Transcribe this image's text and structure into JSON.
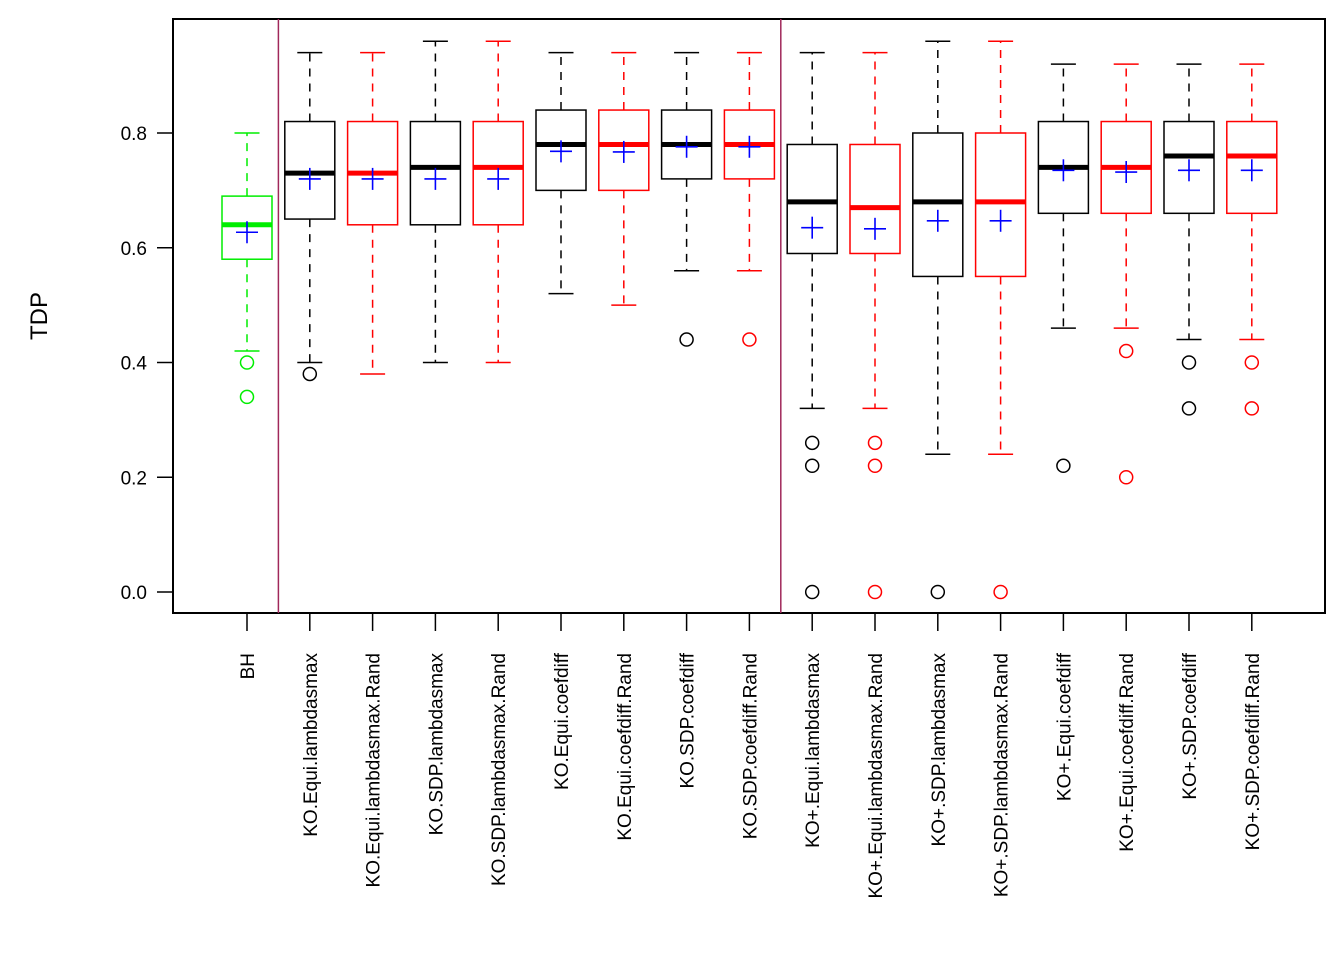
{
  "chart_data": {
    "type": "boxplot",
    "title": "",
    "xlabel": "",
    "ylabel": "TDP",
    "ylim": [
      0,
      0.96
    ],
    "yticks": [
      0.0,
      0.2,
      0.4,
      0.6,
      0.8
    ],
    "ytick_labels": [
      "0.0",
      "0.2",
      "0.4",
      "0.6",
      "0.8"
    ],
    "grid": false,
    "legend": "none",
    "mean_marker": {
      "shape": "plus",
      "color": "#0000ff"
    },
    "group_separators_after_index": [
      0,
      8
    ],
    "separator_color": "#a0285a",
    "categories": [
      "BH",
      "KO.Equi.lambdasmax",
      "KO.Equi.lambdasmax.Rand",
      "KO.SDP.lambdasmax",
      "KO.SDP.lambdasmax.Rand",
      "KO.Equi.coefdiff",
      "KO.Equi.coefdiff.Rand",
      "KO.SDP.coefdiff",
      "KO.SDP.coefdiff.Rand",
      "KO+.Equi.lambdasmax",
      "KO+.Equi.lambdasmax.Rand",
      "KO+.SDP.lambdasmax",
      "KO+.SDP.lambdasmax.Rand",
      "KO+.Equi.coefdiff",
      "KO+.Equi.coefdiff.Rand",
      "KO+.SDP.coefdiff",
      "KO+.SDP.coefdiff.Rand"
    ],
    "boxes": [
      {
        "color": "#00ee00",
        "whisker_low": 0.42,
        "q1": 0.58,
        "median": 0.64,
        "q3": 0.69,
        "whisker_high": 0.8,
        "mean": 0.627,
        "outliers": [
          0.4,
          0.34
        ]
      },
      {
        "color": "#000000",
        "whisker_low": 0.4,
        "q1": 0.65,
        "median": 0.73,
        "q3": 0.82,
        "whisker_high": 0.94,
        "mean": 0.72,
        "outliers": [
          0.38
        ]
      },
      {
        "color": "#ff0000",
        "whisker_low": 0.38,
        "q1": 0.64,
        "median": 0.73,
        "q3": 0.82,
        "whisker_high": 0.94,
        "mean": 0.72,
        "outliers": []
      },
      {
        "color": "#000000",
        "whisker_low": 0.4,
        "q1": 0.64,
        "median": 0.74,
        "q3": 0.82,
        "whisker_high": 0.96,
        "mean": 0.72,
        "outliers": []
      },
      {
        "color": "#ff0000",
        "whisker_low": 0.4,
        "q1": 0.64,
        "median": 0.74,
        "q3": 0.82,
        "whisker_high": 0.96,
        "mean": 0.72,
        "outliers": []
      },
      {
        "color": "#000000",
        "whisker_low": 0.52,
        "q1": 0.7,
        "median": 0.78,
        "q3": 0.84,
        "whisker_high": 0.94,
        "mean": 0.768,
        "outliers": []
      },
      {
        "color": "#ff0000",
        "whisker_low": 0.5,
        "q1": 0.7,
        "median": 0.78,
        "q3": 0.84,
        "whisker_high": 0.94,
        "mean": 0.767,
        "outliers": []
      },
      {
        "color": "#000000",
        "whisker_low": 0.56,
        "q1": 0.72,
        "median": 0.78,
        "q3": 0.84,
        "whisker_high": 0.94,
        "mean": 0.776,
        "outliers": [
          0.44
        ]
      },
      {
        "color": "#ff0000",
        "whisker_low": 0.56,
        "q1": 0.72,
        "median": 0.78,
        "q3": 0.84,
        "whisker_high": 0.94,
        "mean": 0.776,
        "outliers": [
          0.44
        ]
      },
      {
        "color": "#000000",
        "whisker_low": 0.32,
        "q1": 0.59,
        "median": 0.68,
        "q3": 0.78,
        "whisker_high": 0.94,
        "mean": 0.635,
        "outliers": [
          0.26,
          0.22,
          0.0
        ]
      },
      {
        "color": "#ff0000",
        "whisker_low": 0.32,
        "q1": 0.59,
        "median": 0.67,
        "q3": 0.78,
        "whisker_high": 0.94,
        "mean": 0.633,
        "outliers": [
          0.26,
          0.22,
          0.0
        ]
      },
      {
        "color": "#000000",
        "whisker_low": 0.24,
        "q1": 0.55,
        "median": 0.68,
        "q3": 0.8,
        "whisker_high": 0.96,
        "mean": 0.647,
        "outliers": [
          0.0
        ]
      },
      {
        "color": "#ff0000",
        "whisker_low": 0.24,
        "q1": 0.55,
        "median": 0.68,
        "q3": 0.8,
        "whisker_high": 0.96,
        "mean": 0.647,
        "outliers": [
          0.0
        ]
      },
      {
        "color": "#000000",
        "whisker_low": 0.46,
        "q1": 0.66,
        "median": 0.74,
        "q3": 0.82,
        "whisker_high": 0.92,
        "mean": 0.735,
        "outliers": [
          0.22
        ]
      },
      {
        "color": "#ff0000",
        "whisker_low": 0.46,
        "q1": 0.66,
        "median": 0.74,
        "q3": 0.82,
        "whisker_high": 0.92,
        "mean": 0.732,
        "outliers": [
          0.42,
          0.2
        ]
      },
      {
        "color": "#000000",
        "whisker_low": 0.44,
        "q1": 0.66,
        "median": 0.76,
        "q3": 0.82,
        "whisker_high": 0.92,
        "mean": 0.735,
        "outliers": [
          0.4,
          0.32
        ]
      },
      {
        "color": "#ff0000",
        "whisker_low": 0.44,
        "q1": 0.66,
        "median": 0.76,
        "q3": 0.82,
        "whisker_high": 0.92,
        "mean": 0.735,
        "outliers": [
          0.4,
          0.32
        ]
      }
    ]
  }
}
